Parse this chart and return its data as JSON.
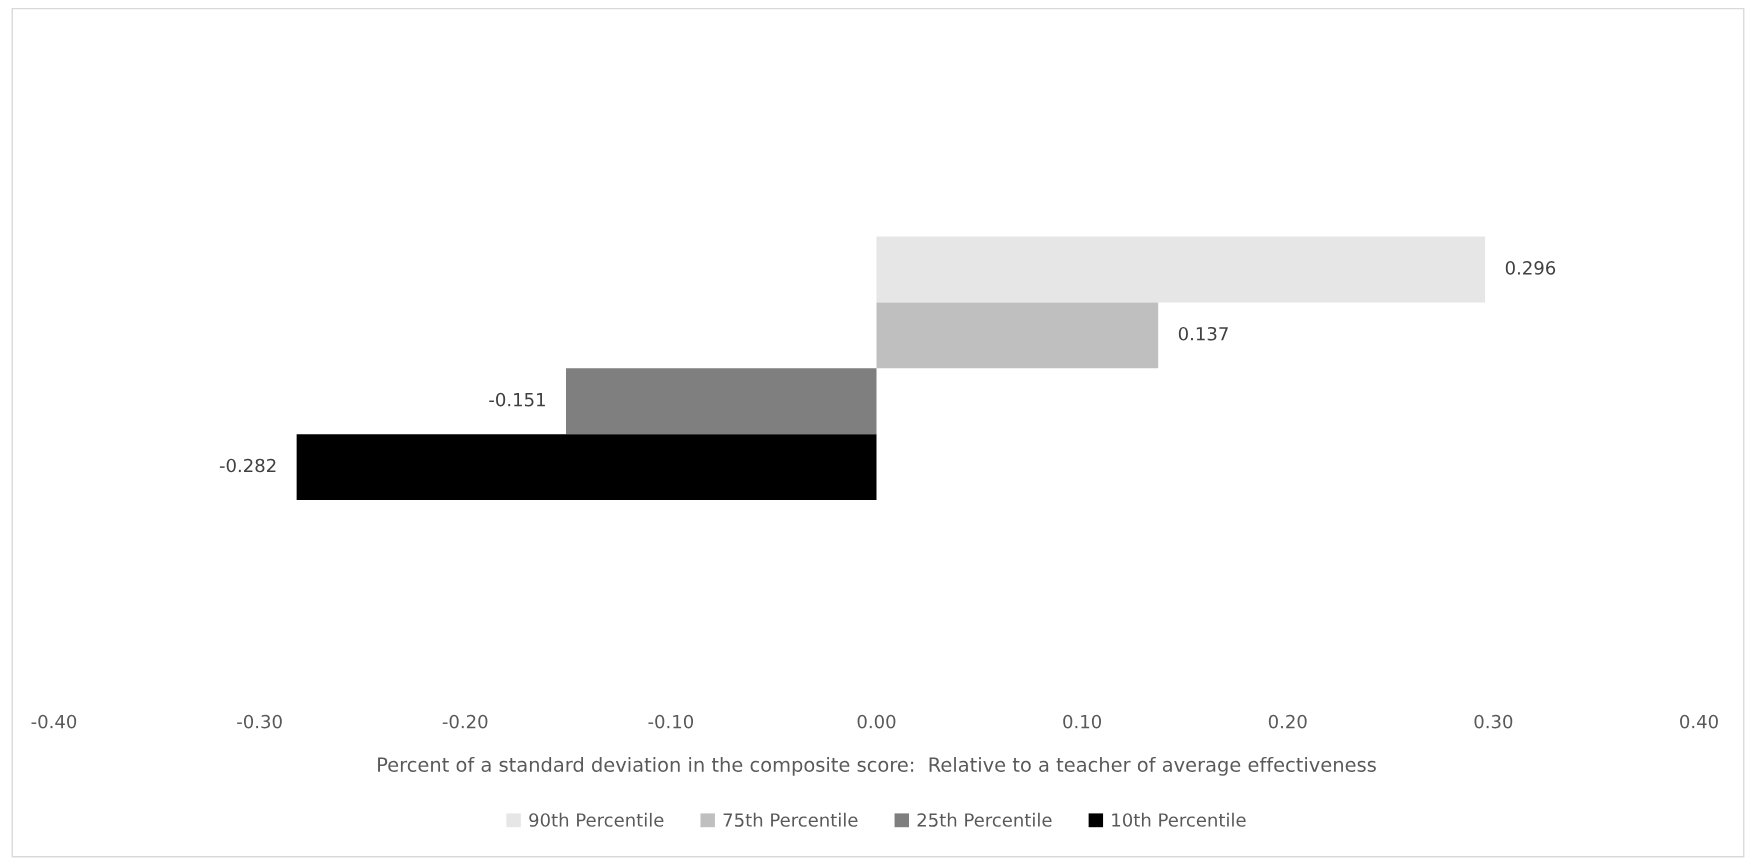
{
  "chart_data": {
    "type": "bar",
    "orientation": "horizontal",
    "categories": [
      null
    ],
    "series": [
      {
        "name": "90th Percentile",
        "color": "#e6e6e6",
        "values": [
          0.296
        ]
      },
      {
        "name": "75th Percentile",
        "color": "#bfbfbf",
        "values": [
          0.137
        ]
      },
      {
        "name": "25th Percentile",
        "color": "#7f7f7f",
        "values": [
          -0.151
        ]
      },
      {
        "name": "10th Percentile",
        "color": "#000000",
        "values": [
          -0.282
        ]
      }
    ],
    "xlim": [
      -0.4,
      0.4
    ],
    "xticks": [
      {
        "value": -0.4,
        "label": "-0.40"
      },
      {
        "value": -0.3,
        "label": "-0.30"
      },
      {
        "value": -0.2,
        "label": "-0.20"
      },
      {
        "value": -0.1,
        "label": "-0.10"
      },
      {
        "value": 0,
        "label": "0.00"
      },
      {
        "value": 0.1,
        "label": "0.10"
      },
      {
        "value": 0.2,
        "label": "0.20"
      },
      {
        "value": 0.3,
        "label": "0.30"
      },
      {
        "value": 0.4,
        "label": "0.40"
      }
    ],
    "xlabel": "Percent of a standard deviation in the composite score:  Relative to a teacher of average effectiveness",
    "data_labels": true,
    "grid": false,
    "legend": "bottom",
    "tick_labels": "x"
  }
}
